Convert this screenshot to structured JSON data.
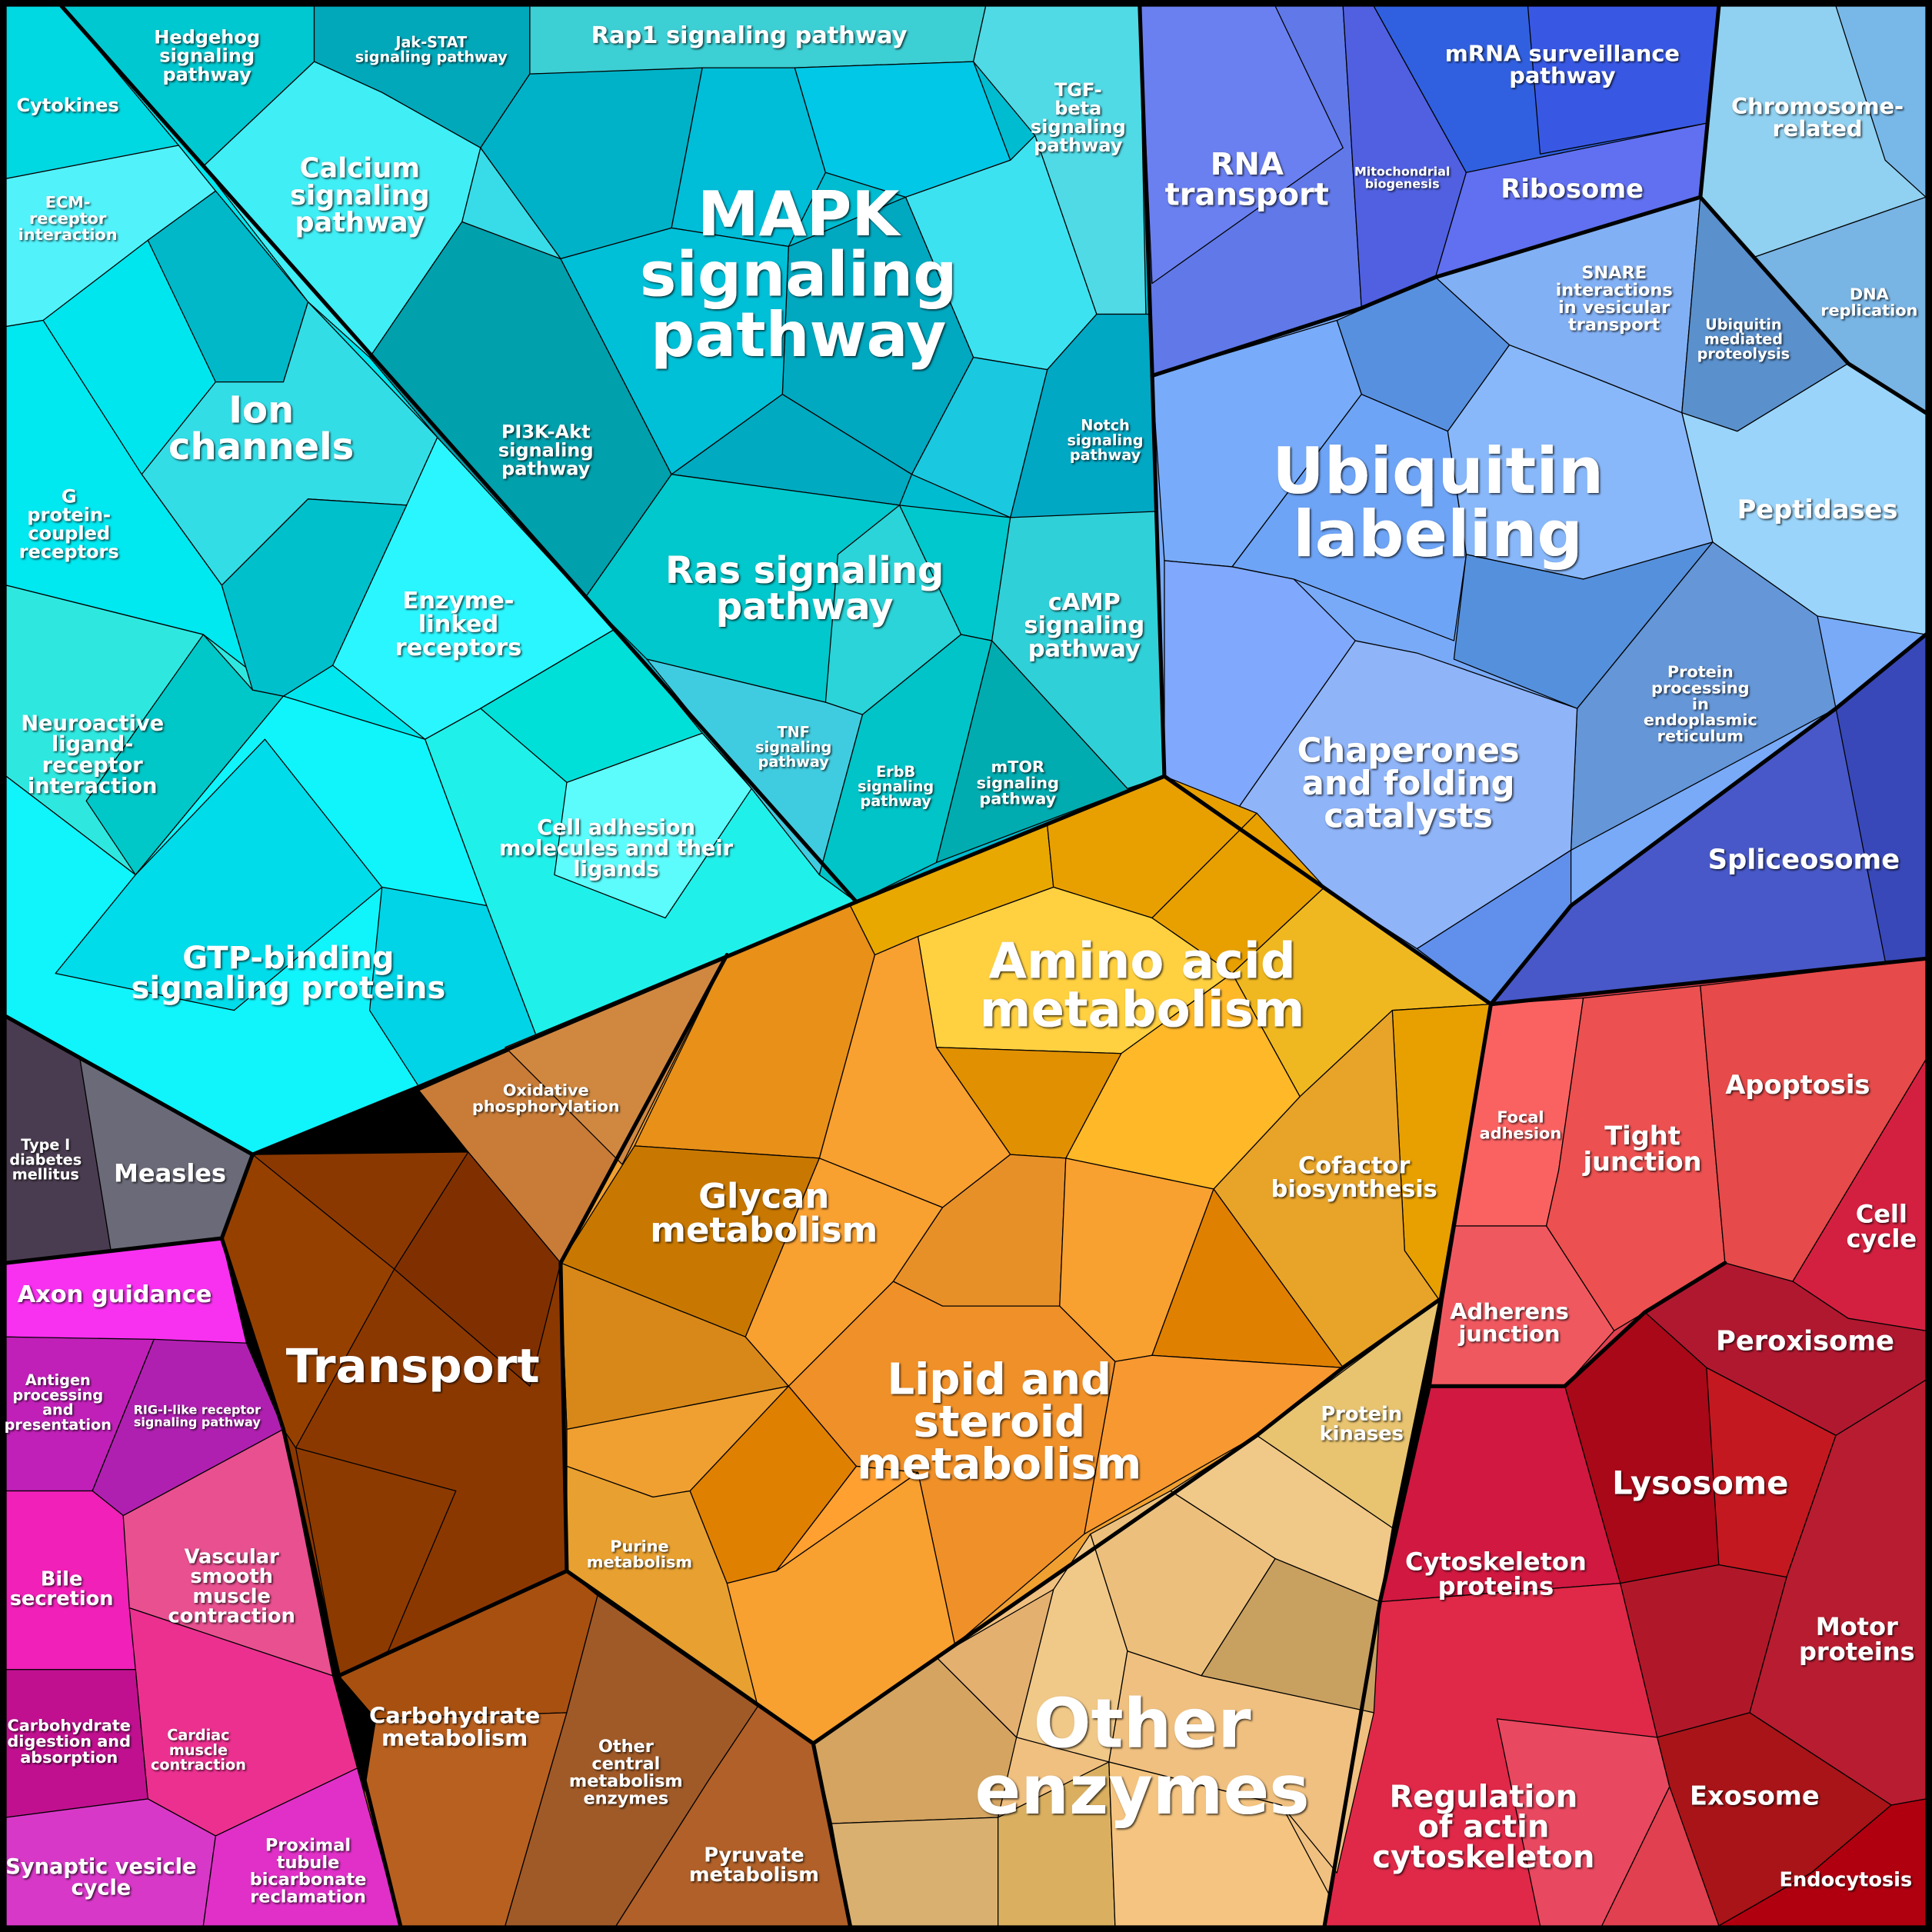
{
  "labels": [
    {
      "lines": [
        "Cytokines"
      ]
    },
    {
      "lines": [
        "Hedgehog",
        "signaling",
        "pathway"
      ]
    },
    {
      "lines": [
        "Jak-STAT",
        "signaling pathway"
      ]
    },
    {
      "lines": [
        "Rap1 signaling pathway"
      ]
    },
    {
      "lines": [
        "TGF-",
        "beta",
        "signaling",
        "pathway"
      ]
    },
    {
      "lines": [
        "mRNA surveillance",
        "pathway"
      ]
    },
    {
      "lines": [
        "Chromosome-",
        "related"
      ]
    },
    {
      "lines": [
        "ECM-",
        "receptor",
        "interaction"
      ]
    },
    {
      "lines": [
        "Calcium",
        "signaling",
        "pathway"
      ]
    },
    {
      "lines": [
        "MAPK",
        "signaling",
        "pathway"
      ]
    },
    {
      "lines": [
        "RNA",
        "transport"
      ]
    },
    {
      "lines": [
        "Mitochondrial",
        "biogenesis"
      ]
    },
    {
      "lines": [
        "Ribosome"
      ]
    },
    {
      "lines": [
        "SNARE",
        "interactions",
        "in vesicular",
        "transport"
      ]
    },
    {
      "lines": [
        "Ubiquitin",
        "mediated",
        "proteolysis"
      ]
    },
    {
      "lines": [
        "DNA",
        "replication"
      ]
    },
    {
      "lines": [
        "Ion",
        "channels"
      ]
    },
    {
      "lines": [
        "PI3K-Akt",
        "signaling",
        "pathway"
      ]
    },
    {
      "lines": [
        "Notch",
        "signaling",
        "pathway"
      ]
    },
    {
      "lines": [
        "Ubiquitin",
        "labeling"
      ]
    },
    {
      "lines": [
        "Peptidases"
      ]
    },
    {
      "lines": [
        "G",
        "protein-",
        "coupled",
        "receptors"
      ]
    },
    {
      "lines": [
        "Enzyme-",
        "linked",
        "receptors"
      ]
    },
    {
      "lines": [
        "Ras signaling",
        "pathway"
      ]
    },
    {
      "lines": [
        "cAMP",
        "signaling",
        "pathway"
      ]
    },
    {
      "lines": [
        "Protein",
        "processing",
        "in",
        "endoplasmic",
        "reticulum"
      ]
    },
    {
      "lines": [
        "Neuroactive",
        "ligand-",
        "receptor",
        "interaction"
      ]
    },
    {
      "lines": [
        "TNF",
        "signaling",
        "pathway"
      ]
    },
    {
      "lines": [
        "ErbB",
        "signaling",
        "pathway"
      ]
    },
    {
      "lines": [
        "mTOR",
        "signaling",
        "pathway"
      ]
    },
    {
      "lines": [
        "Chaperones",
        "and folding",
        "catalysts"
      ]
    },
    {
      "lines": [
        "Cell adhesion",
        "molecules and their",
        "ligands"
      ]
    },
    {
      "lines": [
        "Spliceosome"
      ]
    },
    {
      "lines": [
        "GTP-binding",
        "signaling proteins"
      ]
    },
    {
      "lines": [
        "Amino acid",
        "metabolism"
      ]
    },
    {
      "lines": [
        "Oxidative",
        "phosphorylation"
      ]
    },
    {
      "lines": [
        "Type I",
        "diabetes",
        "mellitus"
      ]
    },
    {
      "lines": [
        "Measles"
      ]
    },
    {
      "lines": [
        "Focal",
        "adhesion"
      ]
    },
    {
      "lines": [
        "Apoptosis"
      ]
    },
    {
      "lines": [
        "Tight",
        "junction"
      ]
    },
    {
      "lines": [
        "Glycan",
        "metabolism"
      ]
    },
    {
      "lines": [
        "Cofactor",
        "biosynthesis"
      ]
    },
    {
      "lines": [
        "Cell",
        "cycle"
      ]
    },
    {
      "lines": [
        "Axon guidance"
      ]
    },
    {
      "lines": [
        "Adherens",
        "junction"
      ]
    },
    {
      "lines": [
        "Peroxisome"
      ]
    },
    {
      "lines": [
        "Transport"
      ]
    },
    {
      "lines": [
        "Antigen",
        "processing",
        "and",
        "presentation"
      ]
    },
    {
      "lines": [
        "RIG-I-like receptor",
        "signaling pathway"
      ]
    },
    {
      "lines": [
        "Lipid and",
        "steroid",
        "metabolism"
      ]
    },
    {
      "lines": [
        "Protein",
        "kinases"
      ]
    },
    {
      "lines": [
        "Lysosome"
      ]
    },
    {
      "lines": [
        "Purine",
        "metabolism"
      ]
    },
    {
      "lines": [
        "Bile",
        "secretion"
      ]
    },
    {
      "lines": [
        "Vascular",
        "smooth",
        "muscle",
        "contraction"
      ]
    },
    {
      "lines": [
        "Cytoskeleton",
        "proteins"
      ]
    },
    {
      "lines": [
        "Motor",
        "proteins"
      ]
    },
    {
      "lines": [
        "Carbohydrate",
        "metabolism"
      ]
    },
    {
      "lines": [
        "Carbohydrate",
        "digestion and",
        "absorption"
      ]
    },
    {
      "lines": [
        "Cardiac",
        "muscle",
        "contraction"
      ]
    },
    {
      "lines": [
        "Other",
        "central",
        "metabolism",
        "enzymes"
      ]
    },
    {
      "lines": [
        "Other",
        "enzymes"
      ]
    },
    {
      "lines": [
        "Regulation",
        "of actin",
        "cytoskeleton"
      ]
    },
    {
      "lines": [
        "Exosome"
      ]
    },
    {
      "lines": [
        "Pyruvate",
        "metabolism"
      ]
    },
    {
      "lines": [
        "Synaptic vesicle",
        "cycle"
      ]
    },
    {
      "lines": [
        "Proximal",
        "tubule",
        "bicarbonate",
        "reclamation"
      ]
    },
    {
      "lines": [
        "Endocytosis"
      ]
    }
  ]
}
